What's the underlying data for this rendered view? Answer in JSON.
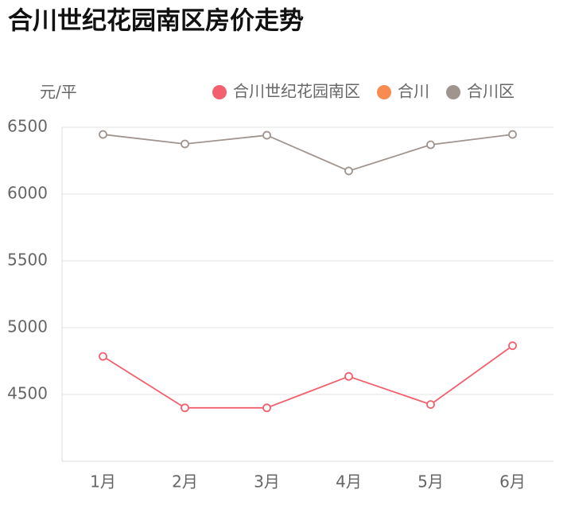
{
  "chart_data": {
    "type": "line",
    "title": "合川世纪花园南区房价走势",
    "y_label": "元/平",
    "categories": [
      "1月",
      "2月",
      "3月",
      "4月",
      "5月",
      "6月"
    ],
    "series": [
      {
        "name": "合川世纪花园南区",
        "color": "#f2606e",
        "values": [
          4785,
          4400,
          4400,
          4635,
          4425,
          4865
        ]
      },
      {
        "name": "合川",
        "color": "#f98a52",
        "values": [
          null,
          null,
          null,
          null,
          null,
          null
        ]
      },
      {
        "name": "合川区",
        "color": "#a0948e",
        "values": [
          6446,
          6375,
          6440,
          6173,
          6369,
          6446
        ]
      }
    ],
    "ylim": [
      4000,
      6500
    ],
    "yticks": [
      4500,
      5000,
      5500,
      6000,
      6500
    ],
    "grid": true
  }
}
